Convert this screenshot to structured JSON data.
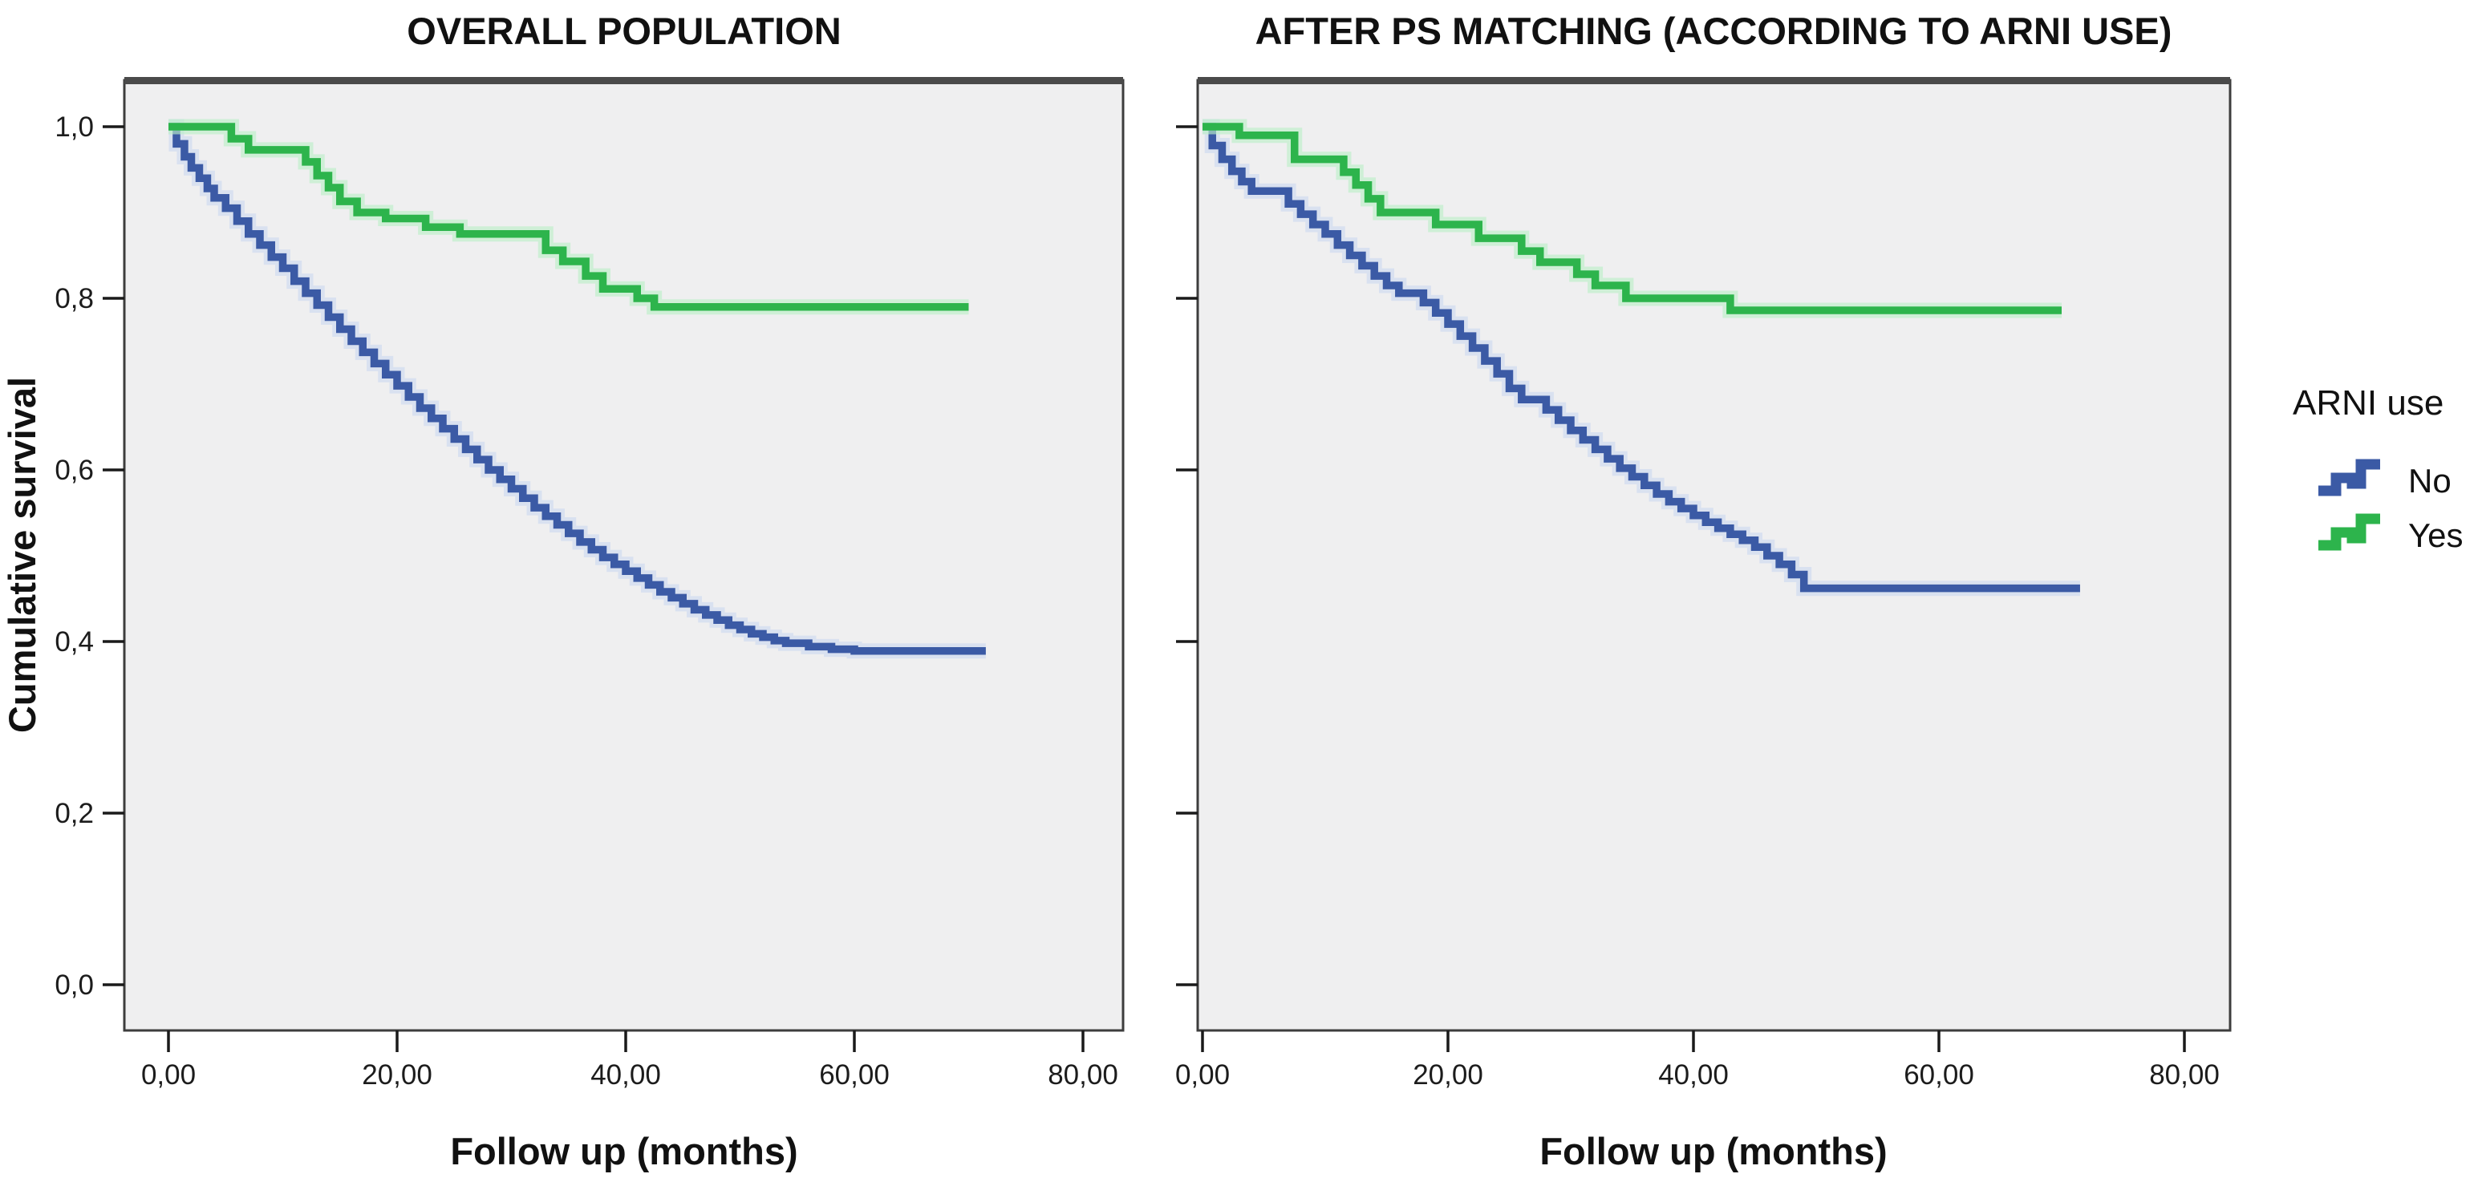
{
  "figure_type": "kaplan-meier-survival-figure",
  "legend": {
    "title": "ARNI use",
    "items": [
      {
        "label": "No",
        "color": "#3b5aa5",
        "halo": "#ccd8f0"
      },
      {
        "label": "Yes",
        "color": "#2db44c",
        "halo": "#bceec7"
      }
    ]
  },
  "colors": {
    "plot_background": "#efeff0",
    "frame": "#3d3d3d",
    "frame_top_band": "#4a4a4a",
    "tick": "#1a1a1a",
    "text": "#111111",
    "page_background": "#ffffff"
  },
  "chart_data": [
    {
      "type": "line",
      "subtype": "kaplan-meier-step",
      "title": "OVERALL POPULATION",
      "xlabel": "Follow up (months)",
      "ylabel": "Cumulative survival",
      "xlim": [
        -4,
        84
      ],
      "ylim": [
        -0.06,
        1.07
      ],
      "grid": false,
      "x_ticks": {
        "values": [
          0,
          20,
          40,
          60,
          80
        ],
        "labels": [
          "0,00",
          "20,00",
          "40,00",
          "60,00",
          "80,00"
        ]
      },
      "y_ticks": {
        "values": [
          1.0,
          0.8,
          0.6,
          0.4,
          0.2,
          0.0
        ],
        "labels": [
          "1,0",
          "0,8",
          "0,6",
          "0,4",
          "0,2",
          "0,0"
        ]
      },
      "series": [
        {
          "name": "No",
          "color": "#3b5aa5",
          "points": [
            [
              0,
              1.0
            ],
            [
              0.7,
              0.98
            ],
            [
              1.4,
              0.965
            ],
            [
              2,
              0.952
            ],
            [
              2.7,
              0.94
            ],
            [
              3.4,
              0.928
            ],
            [
              4,
              0.917
            ],
            [
              5,
              0.905
            ],
            [
              6,
              0.89
            ],
            [
              7,
              0.875
            ],
            [
              8,
              0.862
            ],
            [
              9,
              0.848
            ],
            [
              10,
              0.835
            ],
            [
              11,
              0.82
            ],
            [
              12,
              0.806
            ],
            [
              13,
              0.792
            ],
            [
              14,
              0.778
            ],
            [
              15,
              0.764
            ],
            [
              16,
              0.75
            ],
            [
              17,
              0.737
            ],
            [
              18,
              0.724
            ],
            [
              19,
              0.711
            ],
            [
              20,
              0.698
            ],
            [
              21,
              0.685
            ],
            [
              22,
              0.672
            ],
            [
              23,
              0.66
            ],
            [
              24,
              0.648
            ],
            [
              25,
              0.636
            ],
            [
              26,
              0.624
            ],
            [
              27,
              0.612
            ],
            [
              28,
              0.6
            ],
            [
              29,
              0.589
            ],
            [
              30,
              0.578
            ],
            [
              31,
              0.567
            ],
            [
              32,
              0.556
            ],
            [
              33,
              0.546
            ],
            [
              34,
              0.536
            ],
            [
              35,
              0.526
            ],
            [
              36,
              0.516
            ],
            [
              37,
              0.507
            ],
            [
              38,
              0.498
            ],
            [
              39,
              0.49
            ],
            [
              40,
              0.482
            ],
            [
              41,
              0.474
            ],
            [
              42,
              0.466
            ],
            [
              43,
              0.458
            ],
            [
              44,
              0.451
            ],
            [
              45,
              0.444
            ],
            [
              46,
              0.437
            ],
            [
              47,
              0.431
            ],
            [
              48,
              0.425
            ],
            [
              49,
              0.419
            ],
            [
              50,
              0.414
            ],
            [
              51,
              0.409
            ],
            [
              52,
              0.405
            ],
            [
              53,
              0.401
            ],
            [
              54,
              0.398
            ],
            [
              56,
              0.394
            ],
            [
              58,
              0.391
            ],
            [
              60,
              0.389
            ],
            [
              71.5,
              0.389
            ]
          ]
        },
        {
          "name": "Yes",
          "color": "#2db44c",
          "points": [
            [
              0,
              1.0
            ],
            [
              5.5,
              0.986
            ],
            [
              7,
              0.973
            ],
            [
              12,
              0.959
            ],
            [
              13,
              0.943
            ],
            [
              14,
              0.929
            ],
            [
              15,
              0.913
            ],
            [
              16.5,
              0.9
            ],
            [
              19,
              0.893
            ],
            [
              22.5,
              0.883
            ],
            [
              25.5,
              0.875
            ],
            [
              33,
              0.856
            ],
            [
              34.5,
              0.843
            ],
            [
              36.5,
              0.826
            ],
            [
              38,
              0.811
            ],
            [
              41,
              0.8
            ],
            [
              42.5,
              0.79
            ],
            [
              70,
              0.79
            ]
          ]
        }
      ]
    },
    {
      "type": "line",
      "subtype": "kaplan-meier-step",
      "title": "AFTER PS MATCHING (ACCORDING TO ARNI USE)",
      "xlabel": "Follow up (months)",
      "ylabel": "",
      "xlim": [
        -4,
        84
      ],
      "ylim": [
        -0.06,
        1.07
      ],
      "grid": false,
      "x_ticks": {
        "values": [
          0,
          20,
          40,
          60,
          80
        ],
        "labels": [
          "0,00",
          "20,00",
          "40,00",
          "60,00",
          "80,00"
        ]
      },
      "y_ticks": {
        "values": [
          1.0,
          0.8,
          0.6,
          0.4,
          0.2,
          0.0
        ],
        "labels": []
      },
      "series": [
        {
          "name": "No",
          "color": "#3b5aa5",
          "points": [
            [
              0,
              1.0
            ],
            [
              0.8,
              0.978
            ],
            [
              1.6,
              0.962
            ],
            [
              2.4,
              0.948
            ],
            [
              3.2,
              0.936
            ],
            [
              4,
              0.925
            ],
            [
              7,
              0.91
            ],
            [
              8,
              0.898
            ],
            [
              9,
              0.886
            ],
            [
              10,
              0.875
            ],
            [
              11,
              0.862
            ],
            [
              12,
              0.85
            ],
            [
              13,
              0.838
            ],
            [
              14,
              0.826
            ],
            [
              15,
              0.815
            ],
            [
              16,
              0.806
            ],
            [
              18,
              0.795
            ],
            [
              19,
              0.783
            ],
            [
              20,
              0.77
            ],
            [
              21,
              0.756
            ],
            [
              22,
              0.742
            ],
            [
              23,
              0.727
            ],
            [
              24,
              0.712
            ],
            [
              25,
              0.695
            ],
            [
              26,
              0.682
            ],
            [
              28,
              0.67
            ],
            [
              29,
              0.658
            ],
            [
              30,
              0.646
            ],
            [
              31,
              0.635
            ],
            [
              32,
              0.624
            ],
            [
              33,
              0.613
            ],
            [
              34,
              0.602
            ],
            [
              35,
              0.592
            ],
            [
              36,
              0.582
            ],
            [
              37,
              0.572
            ],
            [
              38,
              0.563
            ],
            [
              39,
              0.555
            ],
            [
              40,
              0.547
            ],
            [
              41,
              0.539
            ],
            [
              42,
              0.532
            ],
            [
              43,
              0.525
            ],
            [
              44,
              0.518
            ],
            [
              45,
              0.51
            ],
            [
              46,
              0.5
            ],
            [
              47,
              0.49
            ],
            [
              48,
              0.478
            ],
            [
              49,
              0.462
            ],
            [
              71.5,
              0.462
            ]
          ]
        },
        {
          "name": "Yes",
          "color": "#2db44c",
          "points": [
            [
              0,
              1.0
            ],
            [
              3,
              0.99
            ],
            [
              7.5,
              0.962
            ],
            [
              11.5,
              0.947
            ],
            [
              12.5,
              0.932
            ],
            [
              13.5,
              0.916
            ],
            [
              14.5,
              0.9
            ],
            [
              19,
              0.886
            ],
            [
              22.5,
              0.87
            ],
            [
              26,
              0.855
            ],
            [
              27.5,
              0.842
            ],
            [
              30.5,
              0.828
            ],
            [
              32,
              0.815
            ],
            [
              34.5,
              0.8
            ],
            [
              43,
              0.786
            ],
            [
              70,
              0.786
            ]
          ]
        }
      ]
    }
  ]
}
